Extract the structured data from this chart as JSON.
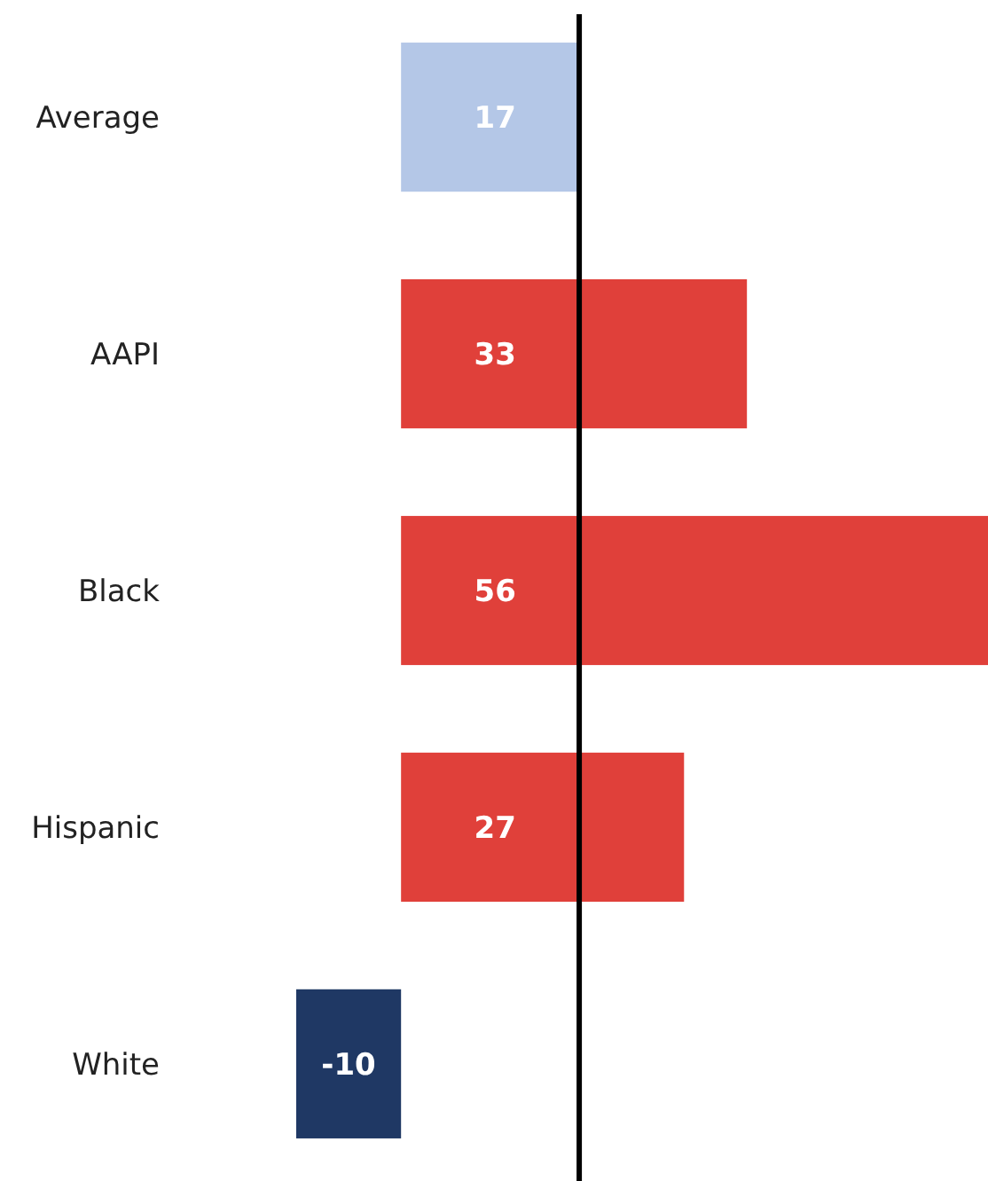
{
  "chart_data": {
    "type": "bar",
    "orientation": "horizontal",
    "categories": [
      "Average",
      "AAPI",
      "Black",
      "Hispanic",
      "White"
    ],
    "values": [
      17,
      33,
      56,
      27,
      -10
    ],
    "colors": [
      "#b4c7e7",
      "#e0403a",
      "#e0403a",
      "#e0403a",
      "#1f3864"
    ],
    "xlim": [
      -10,
      56
    ],
    "data_labels": true,
    "ref_lines": [
      {
        "axis": "x",
        "value": 17,
        "color": "#000000"
      }
    ]
  }
}
